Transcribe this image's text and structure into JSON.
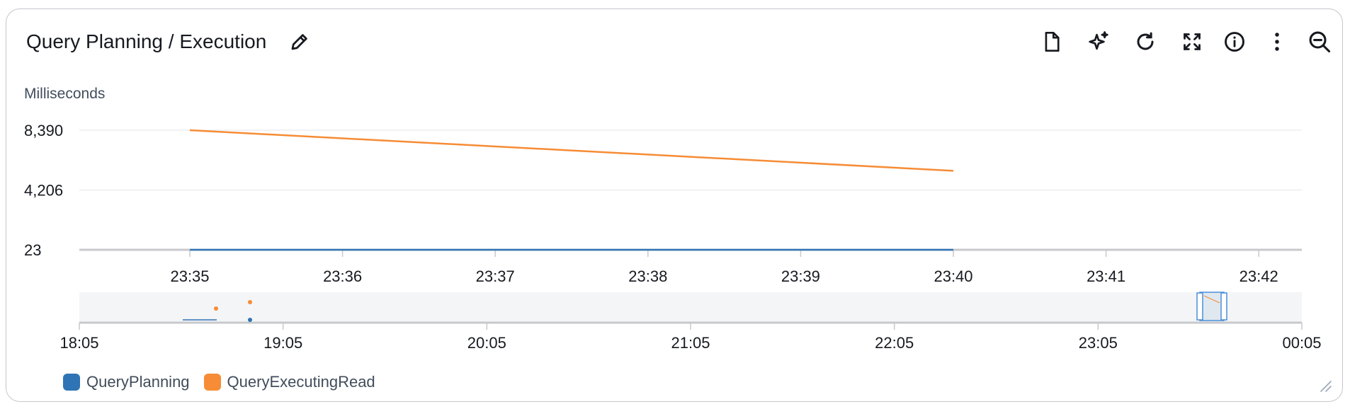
{
  "widget": {
    "title": "Query Planning / Execution",
    "icons": {
      "edit": "pencil-icon",
      "toolbar": [
        "document-icon",
        "sparkle-icon",
        "refresh-icon",
        "fullscreen-icon",
        "info-icon",
        "more-vertical-icon",
        "zoom-out-icon"
      ]
    }
  },
  "chart_data": {
    "type": "line",
    "ylabel": "Milliseconds",
    "yticks": [
      "8,390",
      "4,206",
      "23"
    ],
    "ytick_values": [
      8390,
      4206,
      23
    ],
    "ylim": [
      23,
      8390
    ],
    "xticks": [
      "23:35",
      "23:36",
      "23:37",
      "23:38",
      "23:39",
      "23:40",
      "23:41",
      "23:42"
    ],
    "series": [
      {
        "name": "QueryPlanning",
        "color": "#2f74b5",
        "x": [
          "23:35",
          "23:40"
        ],
        "values": [
          23,
          23
        ]
      },
      {
        "name": "QueryExecutingRead",
        "color": "#f68c35",
        "x": [
          "23:35",
          "23:40"
        ],
        "values": [
          8390,
          5550
        ]
      }
    ],
    "grid": true,
    "legend_position": "bottom-left"
  },
  "navigator": {
    "xticks": [
      "18:05",
      "19:05",
      "20:05",
      "21:05",
      "22:05",
      "23:05",
      "00:05"
    ]
  },
  "legend": [
    {
      "label": "QueryPlanning",
      "color": "#2f74b5"
    },
    {
      "label": "QueryExecutingRead",
      "color": "#f68c35"
    }
  ]
}
